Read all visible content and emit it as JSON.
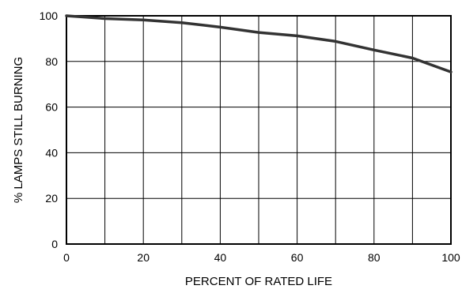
{
  "chart_data": {
    "type": "line",
    "title": "",
    "xlabel": "PERCENT OF RATED LIFE",
    "ylabel": "% LAMPS STILL BURNING",
    "xlim": [
      0,
      100
    ],
    "ylim": [
      0,
      100
    ],
    "xticks": [
      0,
      20,
      40,
      60,
      80,
      100
    ],
    "yticks": [
      0,
      20,
      40,
      60,
      80,
      100
    ],
    "grid": true,
    "grid_x_step": 10,
    "grid_y_step": 20,
    "series": [
      {
        "color": "#333333",
        "x": [
          0,
          10,
          20,
          30,
          40,
          50,
          60,
          70,
          80,
          90,
          100
        ],
        "y": [
          100,
          98.8,
          98.2,
          97,
          95,
          92.7,
          91.2,
          88.8,
          85,
          81.5,
          75.4
        ]
      }
    ]
  }
}
